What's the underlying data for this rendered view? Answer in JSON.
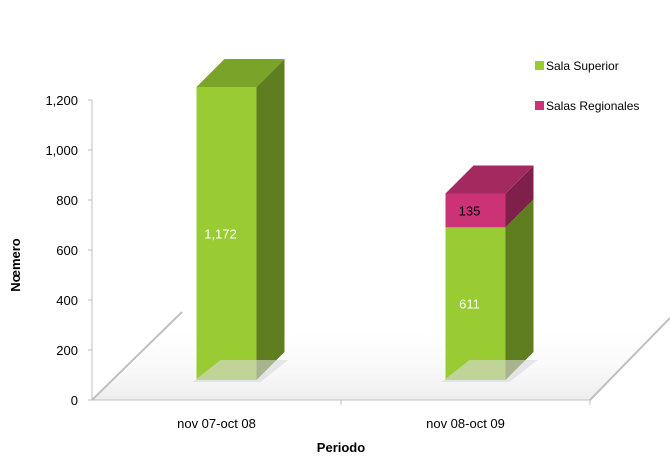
{
  "chart_data": {
    "type": "bar",
    "stacked": true,
    "three_d": true,
    "categories": [
      "nov 07-oct 08",
      "nov 08-oct 09"
    ],
    "series": [
      {
        "name": "Sala Superior",
        "values": [
          1172,
          611
        ],
        "color": "#99cc33",
        "labels": [
          "1,172",
          "611"
        ]
      },
      {
        "name": "Salas Regionales",
        "values": [
          null,
          135
        ],
        "color": "#cc3377",
        "labels": [
          "",
          "135"
        ]
      }
    ],
    "xlabel": "Periodo",
    "ylabel": "Nœmero",
    "ylim": [
      0,
      1200
    ],
    "yticks": [
      0,
      200,
      400,
      600,
      800,
      1000,
      1200
    ],
    "ytick_labels": [
      "0",
      "200",
      "400",
      "600",
      "800",
      "1,000",
      "1,200"
    ],
    "legend_position": "top-right",
    "grid": false
  }
}
